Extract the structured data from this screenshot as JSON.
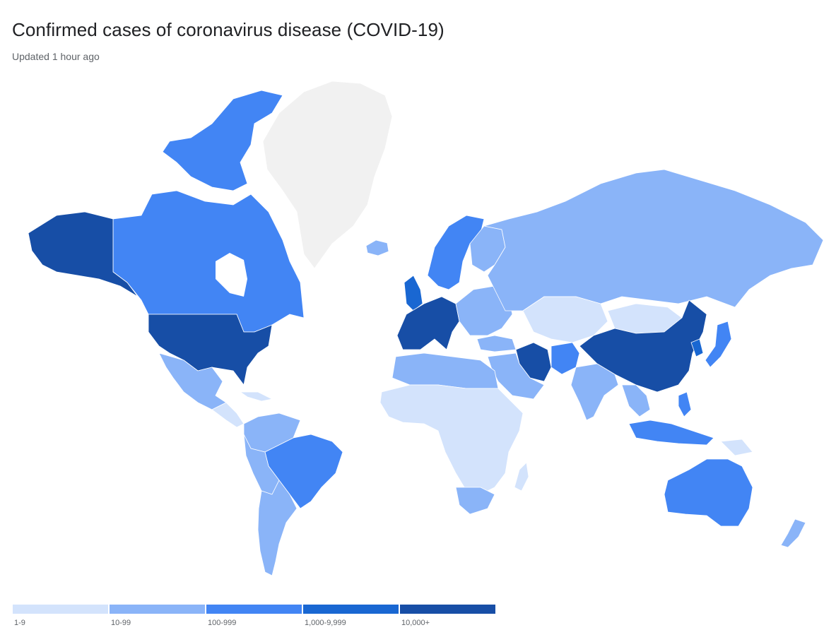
{
  "header": {
    "title": "Confirmed cases of coronavirus disease (COVID-19)",
    "subtitle": "Updated 1 hour ago"
  },
  "colors": {
    "none": "#f1f1f1",
    "tier1": "#d3e3fc",
    "tier2": "#8ab4f8",
    "tier3": "#4285f4",
    "tier4": "#1967d2",
    "tier5": "#174ea6"
  },
  "legend": [
    {
      "label": "1-9",
      "color": "#d3e3fc"
    },
    {
      "label": "10-99",
      "color": "#8ab4f8"
    },
    {
      "label": "100-999",
      "color": "#4285f4"
    },
    {
      "label": "1,000-9,999",
      "color": "#1967d2"
    },
    {
      "label": "10,000+",
      "color": "#174ea6"
    }
  ]
}
